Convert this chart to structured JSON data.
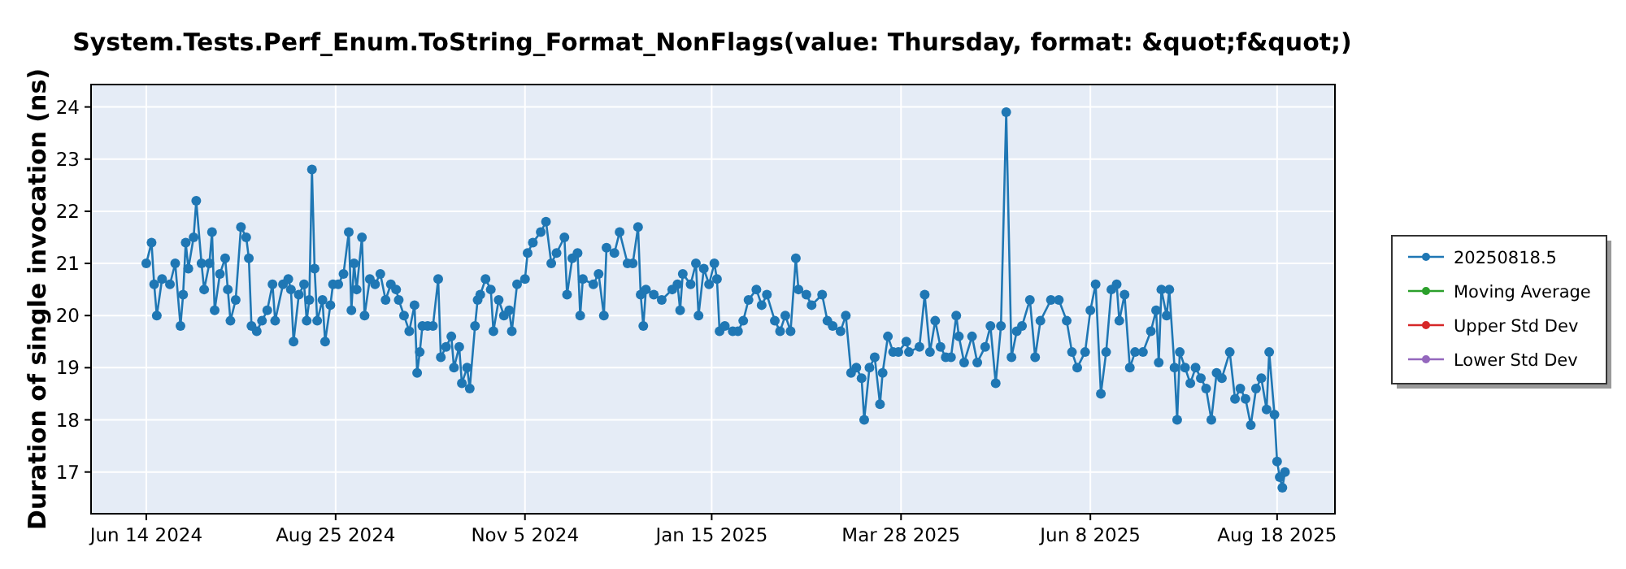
{
  "chart_data": {
    "type": "line",
    "title": "System.Tests.Perf_Enum.ToString_Format_NonFlags(value: Thursday, format: &quot;f&quot;)",
    "ylabel": "Duration of single invocation (ns)",
    "xlim": [
      "2024-05-24",
      "2025-09-09"
    ],
    "xticks": [
      {
        "value": "2024-06-14",
        "label": "Jun 14 2024"
      },
      {
        "value": "2024-08-25",
        "label": "Aug 25 2024"
      },
      {
        "value": "2024-11-05",
        "label": "Nov 5 2024"
      },
      {
        "value": "2025-01-15",
        "label": "Jan 15 2025"
      },
      {
        "value": "2025-03-28",
        "label": "Mar 28 2025"
      },
      {
        "value": "2025-06-08",
        "label": "Jun 8 2025"
      },
      {
        "value": "2025-08-18",
        "label": "Aug 18 2025"
      }
    ],
    "ylim": [
      16.2,
      24.43
    ],
    "yticks": [
      17,
      18,
      19,
      20,
      21,
      22,
      23,
      24
    ],
    "grid": true,
    "legend": "right",
    "marker": "circle",
    "line_style": "solid",
    "series": [
      {
        "name": "20250818.5",
        "color": "#1f77b4",
        "x": [
          "2024-06-14",
          "2024-06-16",
          "2024-06-17",
          "2024-06-18",
          "2024-06-20",
          "2024-06-23",
          "2024-06-25",
          "2024-06-27",
          "2024-06-28",
          "2024-06-29",
          "2024-06-30",
          "2024-07-02",
          "2024-07-03",
          "2024-07-05",
          "2024-07-06",
          "2024-07-08",
          "2024-07-09",
          "2024-07-10",
          "2024-07-12",
          "2024-07-14",
          "2024-07-15",
          "2024-07-16",
          "2024-07-18",
          "2024-07-20",
          "2024-07-22",
          "2024-07-23",
          "2024-07-24",
          "2024-07-26",
          "2024-07-28",
          "2024-07-30",
          "2024-08-01",
          "2024-08-02",
          "2024-08-05",
          "2024-08-07",
          "2024-08-08",
          "2024-08-09",
          "2024-08-11",
          "2024-08-13",
          "2024-08-14",
          "2024-08-15",
          "2024-08-16",
          "2024-08-17",
          "2024-08-18",
          "2024-08-20",
          "2024-08-21",
          "2024-08-23",
          "2024-08-24",
          "2024-08-26",
          "2024-08-28",
          "2024-08-30",
          "2024-08-31",
          "2024-09-01",
          "2024-09-02",
          "2024-09-04",
          "2024-09-05",
          "2024-09-07",
          "2024-09-09",
          "2024-09-11",
          "2024-09-13",
          "2024-09-15",
          "2024-09-17",
          "2024-09-18",
          "2024-09-20",
          "2024-09-22",
          "2024-09-24",
          "2024-09-25",
          "2024-09-26",
          "2024-09-27",
          "2024-09-29",
          "2024-10-01",
          "2024-10-03",
          "2024-10-04",
          "2024-10-06",
          "2024-10-08",
          "2024-10-09",
          "2024-10-11",
          "2024-10-12",
          "2024-10-14",
          "2024-10-15",
          "2024-10-17",
          "2024-10-18",
          "2024-10-19",
          "2024-10-21",
          "2024-10-23",
          "2024-10-24",
          "2024-10-26",
          "2024-10-28",
          "2024-10-30",
          "2024-10-31",
          "2024-11-02",
          "2024-11-05",
          "2024-11-06",
          "2024-11-08",
          "2024-11-11",
          "2024-11-13",
          "2024-11-15",
          "2024-11-17",
          "2024-11-20",
          "2024-11-21",
          "2024-11-23",
          "2024-11-25",
          "2024-11-26",
          "2024-11-27",
          "2024-12-01",
          "2024-12-03",
          "2024-12-05",
          "2024-12-06",
          "2024-12-09",
          "2024-12-11",
          "2024-12-14",
          "2024-12-16",
          "2024-12-18",
          "2024-12-19",
          "2024-12-20",
          "2024-12-21",
          "2024-12-24",
          "2024-12-27",
          "2024-12-31",
          "2025-01-02",
          "2025-01-03",
          "2025-01-04",
          "2025-01-07",
          "2025-01-09",
          "2025-01-10",
          "2025-01-12",
          "2025-01-14",
          "2025-01-16",
          "2025-01-17",
          "2025-01-18",
          "2025-01-20",
          "2025-01-23",
          "2025-01-25",
          "2025-01-27",
          "2025-01-29",
          "2025-02-01",
          "2025-02-03",
          "2025-02-05",
          "2025-02-08",
          "2025-02-10",
          "2025-02-12",
          "2025-02-14",
          "2025-02-16",
          "2025-02-17",
          "2025-02-20",
          "2025-02-22",
          "2025-02-26",
          "2025-02-28",
          "2025-03-02",
          "2025-03-05",
          "2025-03-07",
          "2025-03-09",
          "2025-03-11",
          "2025-03-13",
          "2025-03-14",
          "2025-03-16",
          "2025-03-18",
          "2025-03-20",
          "2025-03-21",
          "2025-03-23",
          "2025-03-25",
          "2025-03-27",
          "2025-03-30",
          "2025-03-31",
          "2025-04-04",
          "2025-04-06",
          "2025-04-08",
          "2025-04-10",
          "2025-04-12",
          "2025-04-14",
          "2025-04-16",
          "2025-04-18",
          "2025-04-19",
          "2025-04-21",
          "2025-04-24",
          "2025-04-26",
          "2025-04-29",
          "2025-05-01",
          "2025-05-03",
          "2025-05-05",
          "2025-05-07",
          "2025-05-09",
          "2025-05-11",
          "2025-05-13",
          "2025-05-16",
          "2025-05-18",
          "2025-05-20",
          "2025-05-24",
          "2025-05-27",
          "2025-05-30",
          "2025-06-01",
          "2025-06-03",
          "2025-06-06",
          "2025-06-08",
          "2025-06-10",
          "2025-06-12",
          "2025-06-14",
          "2025-06-16",
          "2025-06-18",
          "2025-06-19",
          "2025-06-21",
          "2025-06-23",
          "2025-06-25",
          "2025-06-28",
          "2025-07-01",
          "2025-07-03",
          "2025-07-04",
          "2025-07-05",
          "2025-07-07",
          "2025-07-08",
          "2025-07-10",
          "2025-07-11",
          "2025-07-12",
          "2025-07-14",
          "2025-07-16",
          "2025-07-18",
          "2025-07-20",
          "2025-07-22",
          "2025-07-24",
          "2025-07-26",
          "2025-07-28",
          "2025-07-31",
          "2025-08-02",
          "2025-08-04",
          "2025-08-06",
          "2025-08-08",
          "2025-08-10",
          "2025-08-12",
          "2025-08-14",
          "2025-08-15",
          "2025-08-17",
          "2025-08-18",
          "2025-08-19",
          "2025-08-20",
          "2025-08-21"
        ],
        "values": [
          21.0,
          21.4,
          20.6,
          20.0,
          20.7,
          20.6,
          21.0,
          19.8,
          20.4,
          21.4,
          20.9,
          21.5,
          22.2,
          21.0,
          20.5,
          21.0,
          21.6,
          20.1,
          20.8,
          21.1,
          20.5,
          19.9,
          20.3,
          21.7,
          21.5,
          21.1,
          19.8,
          19.7,
          19.9,
          20.1,
          20.6,
          19.9,
          20.6,
          20.7,
          20.5,
          19.5,
          20.4,
          20.6,
          19.9,
          20.3,
          22.8,
          20.9,
          19.9,
          20.3,
          19.5,
          20.2,
          20.6,
          20.6,
          20.8,
          21.6,
          20.1,
          21.0,
          20.5,
          21.5,
          20.0,
          20.7,
          20.6,
          20.8,
          20.3,
          20.6,
          20.5,
          20.3,
          20.0,
          19.7,
          20.2,
          18.9,
          19.3,
          19.8,
          19.8,
          19.8,
          20.7,
          19.2,
          19.4,
          19.6,
          19.0,
          19.4,
          18.7,
          19.0,
          18.6,
          19.8,
          20.3,
          20.4,
          20.7,
          20.5,
          19.7,
          20.3,
          20.0,
          20.1,
          19.7,
          20.6,
          20.7,
          21.2,
          21.4,
          21.6,
          21.8,
          21.0,
          21.2,
          21.5,
          20.4,
          21.1,
          21.2,
          20.0,
          20.7,
          20.6,
          20.8,
          20.0,
          21.3,
          21.2,
          21.6,
          21.0,
          21.0,
          21.7,
          20.4,
          19.8,
          20.5,
          20.4,
          20.3,
          20.5,
          20.6,
          20.1,
          20.8,
          20.6,
          21.0,
          20.0,
          20.9,
          20.6,
          21.0,
          20.7,
          19.7,
          19.8,
          19.7,
          19.7,
          19.9,
          20.3,
          20.5,
          20.2,
          20.4,
          19.9,
          19.7,
          20.0,
          19.7,
          21.1,
          20.5,
          20.4,
          20.2,
          20.4,
          19.9,
          19.8,
          19.7,
          20.0,
          18.9,
          19.0,
          18.8,
          18.0,
          19.0,
          19.2,
          18.3,
          18.9,
          19.6,
          19.3,
          19.3,
          19.5,
          19.3,
          19.4,
          20.4,
          19.3,
          19.9,
          19.4,
          19.2,
          19.2,
          20.0,
          19.6,
          19.1,
          19.6,
          19.1,
          19.4,
          19.8,
          18.7,
          19.8,
          23.9,
          19.2,
          19.7,
          19.8,
          20.3,
          19.2,
          19.9,
          20.3,
          20.3,
          19.9,
          19.3,
          19.0,
          19.3,
          20.1,
          20.6,
          18.5,
          19.3,
          20.5,
          20.6,
          19.9,
          20.4,
          19.0,
          19.3,
          19.3,
          19.7,
          20.1,
          19.1,
          20.5,
          20.0,
          20.5,
          19.0,
          18.0,
          19.3,
          19.0,
          18.7,
          19.0,
          18.8,
          18.6,
          18.0,
          18.9,
          18.8,
          19.3,
          18.4,
          18.6,
          18.4,
          17.9,
          18.6,
          18.8,
          18.2,
          19.3,
          18.1,
          17.2,
          16.9,
          16.7,
          17.0
        ]
      },
      {
        "name": "Moving Average",
        "color": "#2ca02c"
      },
      {
        "name": "Upper Std Dev",
        "color": "#d62728"
      },
      {
        "name": "Lower Std Dev",
        "color": "#9467bd"
      }
    ]
  }
}
